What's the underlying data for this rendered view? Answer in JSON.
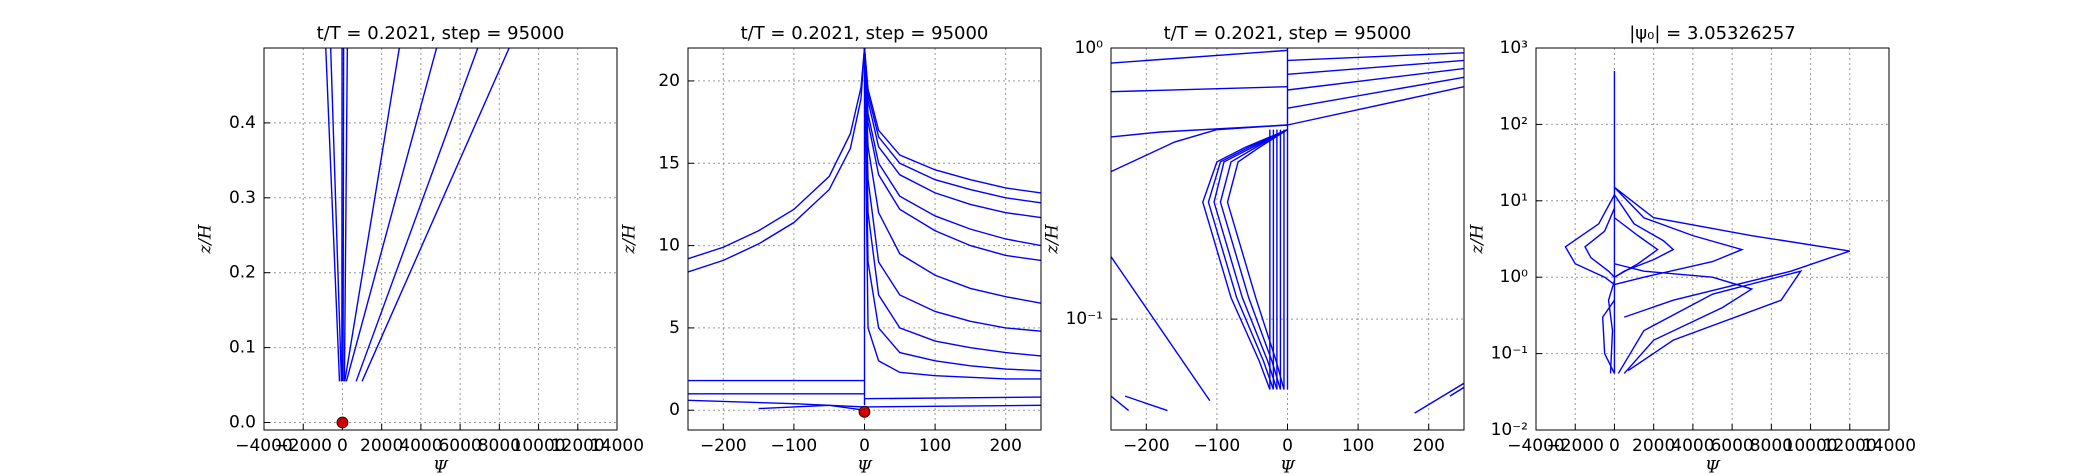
{
  "chart_data": [
    {
      "type": "line",
      "title": "t/T = 0.2021, step = 95000",
      "x_label": "Ψ",
      "y_label": "z/H",
      "grid": true,
      "xlim": [
        -4000,
        14000
      ],
      "ylim": [
        -0.01,
        0.5
      ],
      "xticks": [
        {
          "value": -4000,
          "label": "−4000"
        },
        {
          "value": -2000,
          "label": "−2000"
        },
        0,
        2000,
        4000,
        6000,
        8000,
        10000,
        12000,
        14000
      ],
      "yticks": [
        {
          "value": 0,
          "label": "0.0"
        },
        0.1,
        0.2,
        0.3,
        0.4
      ],
      "series": [
        {
          "color": "#0000ff",
          "x": [
            -150,
            -850
          ],
          "y": [
            0.055,
            0.5
          ]
        },
        {
          "color": "#0000ff",
          "x": [
            -50,
            -600
          ],
          "y": [
            0.055,
            0.5
          ]
        },
        {
          "color": "#0000ff",
          "x": [
            -30,
            -20
          ],
          "y": [
            0.055,
            0.5
          ]
        },
        {
          "color": "#0000ff",
          "x": [
            30,
            60
          ],
          "y": [
            0.055,
            0.5
          ]
        },
        {
          "color": "#0000ff",
          "x": [
            100,
            250
          ],
          "y": [
            0.055,
            0.5
          ]
        },
        {
          "color": "#0000ff",
          "x": [
            120,
            2900
          ],
          "y": [
            0.055,
            0.5
          ]
        },
        {
          "color": "#0000ff",
          "x": [
            200,
            4800
          ],
          "y": [
            0.055,
            0.5
          ]
        },
        {
          "color": "#0000ff",
          "x": [
            700,
            6900
          ],
          "y": [
            0.055,
            0.5
          ]
        },
        {
          "color": "#0000ff",
          "x": [
            1000,
            8500
          ],
          "y": [
            0.055,
            0.5
          ]
        }
      ],
      "markers": [
        {
          "color": "#cc0000",
          "x": 0,
          "y": 0
        }
      ]
    },
    {
      "type": "line",
      "title": "t/T = 0.2021, step = 95000",
      "x_label": "Ψ",
      "y_label": "z/H",
      "grid": true,
      "xlim": [
        -250,
        250
      ],
      "ylim": [
        -1.2,
        22
      ],
      "xticks": [
        {
          "value": -200,
          "label": "−200"
        },
        {
          "value": -100,
          "label": "−100"
        },
        0,
        100,
        200
      ],
      "yticks": [
        0,
        5,
        10,
        15,
        20
      ],
      "series": [
        {
          "color": "#0000ff",
          "x": [
            -250,
            -200,
            -150,
            -100,
            -50,
            -20,
            -5,
            0
          ],
          "y": [
            8.4,
            9.1,
            10.1,
            11.4,
            13.4,
            15.9,
            18.9,
            22
          ]
        },
        {
          "color": "#0000ff",
          "x": [
            -250,
            -200,
            -150,
            -100,
            -50,
            -20,
            -5,
            0
          ],
          "y": [
            9.2,
            9.9,
            10.9,
            12.2,
            14.2,
            16.8,
            19.6,
            22
          ]
        },
        {
          "color": "#0000ff",
          "x": [
            0,
            5,
            20,
            50,
            100,
            150,
            200,
            250
          ],
          "y": [
            22,
            19.5,
            17,
            15.5,
            14.6,
            14,
            13.5,
            13.2
          ]
        },
        {
          "color": "#0000ff",
          "x": [
            0,
            5,
            20,
            50,
            100,
            150,
            200,
            250
          ],
          "y": [
            22,
            19.2,
            16.6,
            15,
            14,
            13.4,
            12.9,
            12.6
          ]
        },
        {
          "color": "#0000ff",
          "x": [
            0,
            5,
            20,
            50,
            100,
            150,
            200,
            250
          ],
          "y": [
            22,
            18.8,
            16,
            14.3,
            13.2,
            12.5,
            12,
            11.7
          ]
        },
        {
          "color": "#0000ff",
          "x": [
            0,
            5,
            20,
            50,
            100,
            150,
            200,
            250
          ],
          "y": [
            22,
            18,
            15,
            13,
            11.8,
            11,
            10.4,
            10
          ]
        },
        {
          "color": "#0000ff",
          "x": [
            0,
            5,
            20,
            50,
            100,
            150,
            200,
            250
          ],
          "y": [
            22,
            17.5,
            14.3,
            12.2,
            10.9,
            10,
            9.4,
            9.1
          ]
        },
        {
          "color": "#0000ff",
          "x": [
            0,
            5,
            20,
            50,
            100,
            150,
            200,
            250
          ],
          "y": [
            22,
            16,
            12,
            9.5,
            8.2,
            7.4,
            6.9,
            6.5
          ]
        },
        {
          "color": "#0000ff",
          "x": [
            0,
            5,
            20,
            50,
            100,
            150,
            200,
            250
          ],
          "y": [
            22,
            14,
            9,
            7,
            6,
            5.4,
            5,
            4.8
          ]
        },
        {
          "color": "#0000ff",
          "x": [
            0,
            5,
            20,
            50,
            100,
            150,
            200,
            250
          ],
          "y": [
            22,
            12,
            7,
            5,
            4.2,
            3.8,
            3.5,
            3.3
          ]
        },
        {
          "color": "#0000ff",
          "x": [
            0,
            5,
            20,
            50,
            100,
            150,
            200,
            250
          ],
          "y": [
            22,
            9,
            5,
            3.5,
            3,
            2.7,
            2.5,
            2.4
          ]
        },
        {
          "color": "#0000ff",
          "x": [
            0,
            5,
            20,
            50,
            100,
            150,
            200,
            250
          ],
          "y": [
            22,
            5,
            3,
            2.3,
            2.1,
            2,
            1.9,
            1.9
          ]
        },
        {
          "color": "#0000ff",
          "x": [
            0,
            0
          ],
          "y": [
            0.3,
            22
          ]
        },
        {
          "color": "#0000ff",
          "x": [
            -250,
            0
          ],
          "y": [
            1.8,
            1.8
          ]
        },
        {
          "color": "#0000ff",
          "x": [
            -250,
            0
          ],
          "y": [
            1,
            1
          ]
        },
        {
          "color": "#0000ff",
          "x": [
            -250,
            -100,
            0
          ],
          "y": [
            0.6,
            0.4,
            0.2
          ]
        },
        {
          "color": "#0000ff",
          "x": [
            -150,
            -50,
            0
          ],
          "y": [
            0.1,
            0.3,
            0
          ]
        },
        {
          "color": "#0000ff",
          "x": [
            0,
            250
          ],
          "y": [
            0.7,
            0.8
          ]
        },
        {
          "color": "#0000ff",
          "x": [
            0,
            250
          ],
          "y": [
            0.2,
            0.3
          ]
        }
      ],
      "markers": [
        {
          "color": "#cc0000",
          "x": 0,
          "y": -0.1
        }
      ]
    },
    {
      "type": "line",
      "title": "t/T = 0.2021, step = 95000",
      "x_label": "Ψ",
      "y_label": "z/H",
      "grid": true,
      "yscale": "log",
      "xlim": [
        -250,
        250
      ],
      "ylim": [
        0.039,
        1
      ],
      "xticks": [
        {
          "value": -200,
          "label": "−200"
        },
        {
          "value": -100,
          "label": "−100"
        },
        0,
        100,
        200
      ],
      "yticks": [
        {
          "value": 0.1,
          "label": "10⁻¹"
        },
        {
          "value": 1,
          "label": "10⁰"
        }
      ],
      "series": [
        {
          "color": "#0000ff",
          "x": [
            0,
            -60,
            -100,
            -120,
            -80,
            -40,
            -25
          ],
          "y": [
            0.5,
            0.43,
            0.38,
            0.27,
            0.12,
            0.07,
            0.055
          ]
        },
        {
          "color": "#0000ff",
          "x": [
            0,
            -55,
            -95,
            -112,
            -72,
            -34,
            -20
          ],
          "y": [
            0.5,
            0.43,
            0.38,
            0.27,
            0.12,
            0.07,
            0.055
          ]
        },
        {
          "color": "#0000ff",
          "x": [
            0,
            -50,
            -90,
            -104,
            -64,
            -28,
            -15
          ],
          "y": [
            0.5,
            0.43,
            0.38,
            0.27,
            0.12,
            0.07,
            0.055
          ]
        },
        {
          "color": "#0000ff",
          "x": [
            0,
            -45,
            -80,
            -95,
            -55,
            -22,
            -10
          ],
          "y": [
            0.5,
            0.43,
            0.38,
            0.27,
            0.12,
            0.07,
            0.055
          ]
        },
        {
          "color": "#0000ff",
          "x": [
            0,
            -40,
            -70,
            -85,
            -45,
            -16,
            -5
          ],
          "y": [
            0.5,
            0.43,
            0.38,
            0.27,
            0.12,
            0.07,
            0.055
          ]
        },
        {
          "color": "#0000ff",
          "x": [
            -25,
            -25
          ],
          "y": [
            0.055,
            0.5
          ]
        },
        {
          "color": "#0000ff",
          "x": [
            -20,
            -20
          ],
          "y": [
            0.055,
            0.5
          ]
        },
        {
          "color": "#0000ff",
          "x": [
            -15,
            -15
          ],
          "y": [
            0.055,
            0.5
          ]
        },
        {
          "color": "#0000ff",
          "x": [
            -10,
            -10
          ],
          "y": [
            0.055,
            0.5
          ]
        },
        {
          "color": "#0000ff",
          "x": [
            -5,
            -5
          ],
          "y": [
            0.055,
            0.5
          ]
        },
        {
          "color": "#0000ff",
          "x": [
            0,
            0
          ],
          "y": [
            0.055,
            1
          ]
        },
        {
          "color": "#0000ff",
          "x": [
            -250,
            0
          ],
          "y": [
            0.88,
            0.98
          ]
        },
        {
          "color": "#0000ff",
          "x": [
            -250,
            0
          ],
          "y": [
            0.69,
            0.72
          ]
        },
        {
          "color": "#0000ff",
          "x": [
            -250,
            -180,
            0
          ],
          "y": [
            0.47,
            0.49,
            0.52
          ]
        },
        {
          "color": "#0000ff",
          "x": [
            -250,
            -160,
            -100,
            0
          ],
          "y": [
            0.35,
            0.45,
            0.5,
            0.52
          ]
        },
        {
          "color": "#0000ff",
          "x": [
            0,
            250
          ],
          "y": [
            0.52,
            0.72
          ]
        },
        {
          "color": "#0000ff",
          "x": [
            0,
            250
          ],
          "y": [
            0.6,
            0.78
          ]
        },
        {
          "color": "#0000ff",
          "x": [
            0,
            250
          ],
          "y": [
            0.7,
            0.84
          ]
        },
        {
          "color": "#0000ff",
          "x": [
            0,
            250
          ],
          "y": [
            0.8,
            0.9
          ]
        },
        {
          "color": "#0000ff",
          "x": [
            0,
            250
          ],
          "y": [
            0.9,
            0.96
          ]
        },
        {
          "color": "#0000ff",
          "x": [
            -250,
            -110
          ],
          "y": [
            0.17,
            0.05
          ]
        },
        {
          "color": "#0000ff",
          "x": [
            -250,
            -225
          ],
          "y": [
            0.052,
            0.046
          ]
        },
        {
          "color": "#0000ff",
          "x": [
            -230,
            -170
          ],
          "y": [
            0.052,
            0.046
          ]
        },
        {
          "color": "#0000ff",
          "x": [
            180,
            250
          ],
          "y": [
            0.045,
            0.058
          ]
        },
        {
          "color": "#0000ff",
          "x": [
            230,
            250
          ],
          "y": [
            0.052,
            0.056
          ]
        }
      ]
    },
    {
      "type": "line",
      "title": "|ψ₀| = 3.05326257",
      "x_label": "Ψ",
      "y_label": "z/H",
      "grid": true,
      "yscale": "log",
      "xlim": [
        -4000,
        14000
      ],
      "ylim": [
        0.01,
        1000
      ],
      "xticks": [
        {
          "value": -4000,
          "label": "−4000"
        },
        {
          "value": -2000,
          "label": "−2000"
        },
        0,
        2000,
        4000,
        6000,
        8000,
        10000,
        12000,
        14000
      ],
      "yticks": [
        {
          "value": 0.01,
          "label": "10⁻²"
        },
        {
          "value": 0.1,
          "label": "10⁻¹"
        },
        {
          "value": 1,
          "label": "10⁰"
        },
        {
          "value": 10,
          "label": "10¹"
        },
        {
          "value": 100,
          "label": "10²"
        },
        {
          "value": 1000,
          "label": "10³"
        }
      ],
      "series": [
        {
          "color": "#0000ff",
          "x": [
            0,
            0
          ],
          "y": [
            0.055,
            500
          ]
        },
        {
          "color": "#0000ff",
          "x": [
            0,
            -800,
            -2500,
            -2000,
            -500,
            0
          ],
          "y": [
            12,
            5,
            2.5,
            1.5,
            1,
            0.8
          ]
        },
        {
          "color": "#0000ff",
          "x": [
            0,
            -500,
            -1500,
            -1200,
            -300,
            0
          ],
          "y": [
            8,
            4,
            2.5,
            1.8,
            1.2,
            1
          ]
        },
        {
          "color": "#0000ff",
          "x": [
            0,
            1000,
            2500,
            3000,
            2000,
            500,
            0
          ],
          "y": [
            12,
            5,
            3,
            2.3,
            1.7,
            1.2,
            1
          ]
        },
        {
          "color": "#0000ff",
          "x": [
            0,
            1200,
            2200,
            1200,
            0
          ],
          "y": [
            6,
            3.5,
            2.3,
            1.5,
            1
          ]
        },
        {
          "color": "#0000ff",
          "x": [
            0,
            1500,
            4000,
            6500,
            5000,
            1500,
            0
          ],
          "y": [
            15,
            6,
            3.5,
            2.3,
            1.6,
            1,
            0.8
          ]
        },
        {
          "color": "#0000ff",
          "x": [
            0,
            2000,
            7000,
            12000,
            9000,
            3000,
            500
          ],
          "y": [
            15,
            6,
            3.5,
            2.2,
            1.2,
            0.5,
            0.3
          ]
        },
        {
          "color": "#0000ff",
          "x": [
            200,
            1500,
            5000,
            9500,
            8500,
            3000,
            700
          ],
          "y": [
            0.055,
            0.2,
            0.6,
            1.2,
            0.5,
            0.15,
            0.06
          ]
        },
        {
          "color": "#0000ff",
          "x": [
            500,
            2000,
            5500,
            7000,
            5000,
            1500,
            0
          ],
          "y": [
            0.055,
            0.15,
            0.4,
            0.7,
            1,
            1.2,
            1.5
          ]
        },
        {
          "color": "#0000ff",
          "x": [
            0,
            -600,
            -500,
            0
          ],
          "y": [
            0.5,
            0.3,
            0.1,
            0.055
          ]
        },
        {
          "color": "#0000ff",
          "x": [
            -200,
            -100,
            -300,
            0
          ],
          "y": [
            0.055,
            0.2,
            0.5,
            0.9
          ]
        }
      ]
    }
  ]
}
